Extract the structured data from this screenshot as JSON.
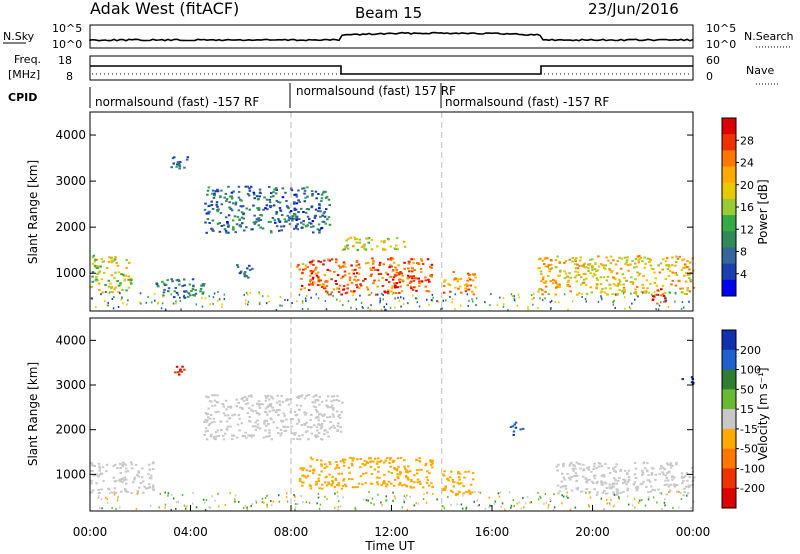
{
  "header": {
    "radar": "Adak West (fitACF)",
    "beam": "Beam 15",
    "date": "23/Jun/2016"
  },
  "nsky_panel": {
    "left_label": "N.Sky",
    "right_label": "N.Search",
    "left_ticks": [
      "10^5",
      "10^0"
    ],
    "right_ticks": [
      "10^5",
      "10^0"
    ]
  },
  "freq_panel": {
    "left_label_1": "Freq.",
    "left_label_2": "[MHz]",
    "right_label": "Nave",
    "left_ticks": [
      "18",
      "8"
    ],
    "right_ticks": [
      "60",
      "0"
    ]
  },
  "cpid": {
    "label": "CPID",
    "segments": [
      {
        "text": "normalsound (fast) -157 RF"
      },
      {
        "text": "normalsound (fast) 157 RF"
      },
      {
        "text": "normalsound (fast) -157 RF"
      }
    ]
  },
  "power_panel": {
    "ylabel": "Slant Range [km]",
    "yticks": [
      "4000",
      "3000",
      "2000",
      "1000"
    ],
    "cbar_label": "Power [dB]",
    "cbar_ticks": [
      "28",
      "24",
      "20",
      "16",
      "12",
      "8",
      "4"
    ],
    "cbar_colors": [
      "#dd0000",
      "#ee3300",
      "#ff7700",
      "#ffaa00",
      "#e8c800",
      "#99cc33",
      "#33aa44",
      "#2e8b57",
      "#336699",
      "#1a3fb0",
      "#0000ee"
    ]
  },
  "velocity_panel": {
    "ylabel": "Slant Range [km]",
    "yticks": [
      "4000",
      "3000",
      "2000",
      "1000"
    ],
    "cbar_label": "Velocity [m s⁻¹]",
    "cbar_ticks": [
      "200",
      "100",
      "50",
      "15",
      "-15",
      "-50",
      "-100",
      "-200"
    ],
    "cbar_colors": [
      "#1030b0",
      "#2060cc",
      "#2e7d32",
      "#66bb33",
      "#c8c8c8",
      "#ffaa00",
      "#ff7700",
      "#ee3300",
      "#dd0000"
    ]
  },
  "time_axis": {
    "xlabel": "Time UT",
    "ticks": [
      "00:00",
      "04:00",
      "08:00",
      "12:00",
      "16:00",
      "20:00",
      "00:00"
    ]
  },
  "chart_data": [
    {
      "type": "heatmap",
      "title": "Beam 15",
      "xlabel": "Time UT",
      "ylabel": "Slant Range [km]",
      "xlim": [
        0,
        24
      ],
      "ylim": [
        180,
        4500
      ],
      "colorbar": {
        "label": "Power [dB]",
        "ticks": [
          28,
          24,
          20,
          16,
          12,
          8,
          4
        ]
      },
      "regions": [
        {
          "t": [
            0.0,
            1.6
          ],
          "r": [
            600,
            1400
          ],
          "power": 18
        },
        {
          "t": [
            2.6,
            4.6
          ],
          "r": [
            500,
            900
          ],
          "power": 10
        },
        {
          "t": [
            3.2,
            4.0
          ],
          "r": [
            3250,
            3550
          ],
          "power": 8
        },
        {
          "t": [
            5.8,
            6.6
          ],
          "r": [
            900,
            1200
          ],
          "power": 8
        },
        {
          "t": [
            4.5,
            9.5
          ],
          "r": [
            1900,
            2900
          ],
          "power": 8
        },
        {
          "t": [
            8.2,
            13.6
          ],
          "r": [
            550,
            1350
          ],
          "power": 26
        },
        {
          "t": [
            10.0,
            12.5
          ],
          "r": [
            1500,
            1800
          ],
          "power": 18
        },
        {
          "t": [
            14.0,
            15.3
          ],
          "r": [
            550,
            1050
          ],
          "power": 22
        },
        {
          "t": [
            17.8,
            24.0
          ],
          "r": [
            550,
            1400
          ],
          "power": 20
        },
        {
          "t": [
            22.3,
            22.9
          ],
          "r": [
            350,
            700
          ],
          "power": 28
        }
      ]
    },
    {
      "type": "heatmap",
      "xlabel": "Time UT",
      "ylabel": "Slant Range [km]",
      "xlim": [
        0,
        24
      ],
      "ylim": [
        180,
        4500
      ],
      "colorbar": {
        "label": "Velocity [m s⁻¹]",
        "ticks": [
          200,
          100,
          50,
          15,
          -15,
          -50,
          -100,
          -200
        ]
      },
      "regions": [
        {
          "t": [
            0.0,
            2.5
          ],
          "r": [
            600,
            1300
          ],
          "velocity": 0
        },
        {
          "t": [
            3.3,
            3.8
          ],
          "r": [
            3250,
            3550
          ],
          "velocity": -200
        },
        {
          "t": [
            4.5,
            10.0
          ],
          "r": [
            1800,
            2800
          ],
          "velocity": 0
        },
        {
          "t": [
            8.3,
            13.6
          ],
          "r": [
            700,
            1400
          ],
          "velocity": -40
        },
        {
          "t": [
            14.0,
            15.3
          ],
          "r": [
            550,
            1100
          ],
          "velocity": -40
        },
        {
          "t": [
            16.7,
            17.2
          ],
          "r": [
            1900,
            2200
          ],
          "velocity": 150
        },
        {
          "t": [
            18.5,
            24.0
          ],
          "r": [
            550,
            1300
          ],
          "velocity": 0
        },
        {
          "t": [
            23.5,
            24.0
          ],
          "r": [
            3000,
            3200
          ],
          "velocity": 200
        }
      ]
    }
  ]
}
